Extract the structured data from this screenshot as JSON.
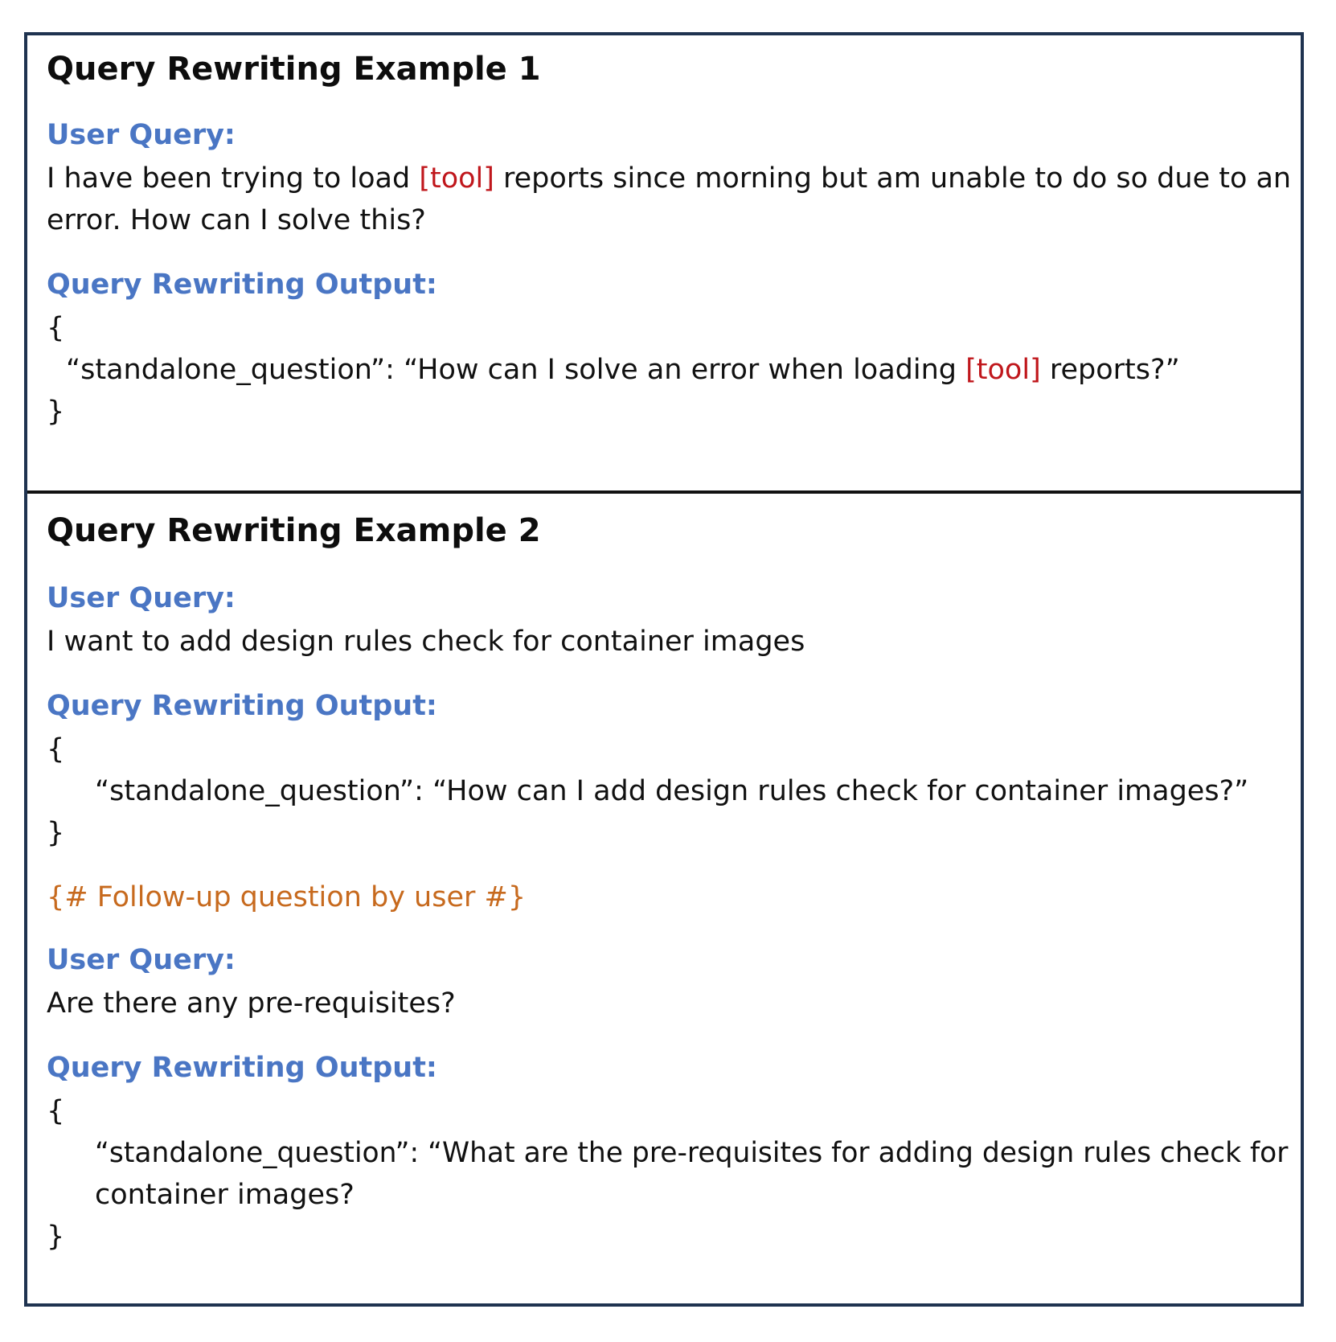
{
  "colors": {
    "border": "#1f3350",
    "label_blue": "#4a76c4",
    "highlight_red": "#c0171c",
    "note_orange": "#c76a1e"
  },
  "example1": {
    "title": "Query Rewriting Example 1",
    "user_query_label": "User Query:",
    "user_query_line1_a": "I have been trying to load ",
    "user_query_line1_tool": "[tool]",
    "user_query_line1_b": " reports since morning but am unable to do so due to an",
    "user_query_line2": "error. How can I solve this?",
    "output_label": "Query Rewriting Output:",
    "open_brace": "{",
    "output_a": "“standalone_question”: “How can I solve an error when loading ",
    "output_tool": "[tool]",
    "output_b": " reports?”",
    "close_brace": "}"
  },
  "example2": {
    "title": "Query Rewriting Example 2",
    "user_query_label": "User Query:",
    "user_query": "I want to add design rules check for container images",
    "output_label": "Query Rewriting Output:",
    "open_brace": "{",
    "output": "“standalone_question”: “How can I add design rules check for container images?”",
    "close_brace": "}",
    "followup_note": "{# Follow-up question by user #}",
    "user_query2_label": "User Query:",
    "user_query2": "Are there any pre-requisites?",
    "output2_label": "Query Rewriting Output:",
    "open_brace2": "{",
    "output2_line1": "“standalone_question”: “What are the pre-requisites for adding design rules check for",
    "output2_line2": "container images?",
    "close_brace2": "}"
  }
}
